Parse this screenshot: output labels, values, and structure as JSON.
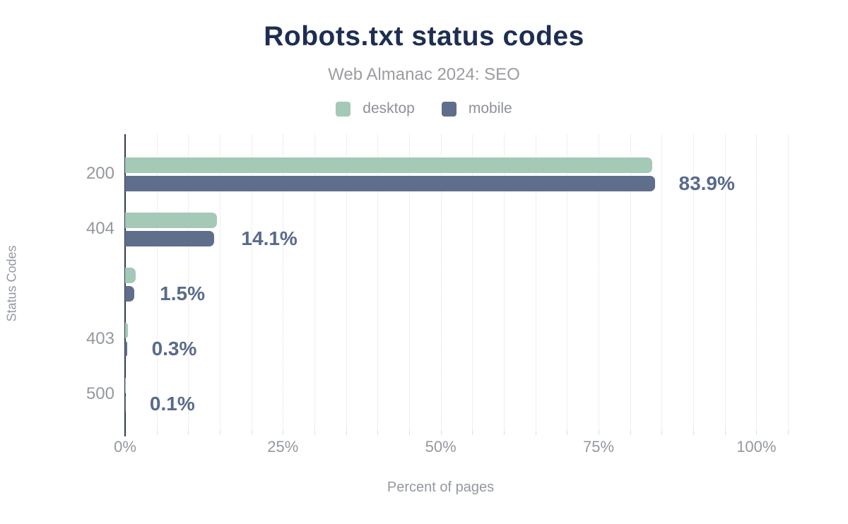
{
  "chart_data": {
    "type": "bar",
    "orientation": "horizontal",
    "title": "Robots.txt status codes",
    "subtitle": "Web Almanac 2024: SEO",
    "xlabel": "Percent of pages",
    "ylabel": "Status Codes",
    "categories": [
      "200",
      "404",
      "",
      "403",
      "500"
    ],
    "series": [
      {
        "name": "desktop",
        "color": "#a4c9b6",
        "values": [
          83.5,
          14.6,
          1.7,
          0.4,
          0.1
        ]
      },
      {
        "name": "mobile",
        "color": "#5f6e8b",
        "values": [
          83.9,
          14.1,
          1.5,
          0.3,
          0.1
        ]
      }
    ],
    "data_labels": [
      "83.9%",
      "14.1%",
      "1.5%",
      "0.3%",
      "0.1%"
    ],
    "x_ticks": [
      {
        "value": 0,
        "label": "0%"
      },
      {
        "value": 25,
        "label": "25%"
      },
      {
        "value": 50,
        "label": "50%"
      },
      {
        "value": 75,
        "label": "75%"
      },
      {
        "value": 100,
        "label": "100%"
      }
    ],
    "xlim": [
      0,
      105
    ],
    "minor_grid_step": 5,
    "major_grid_step": 25,
    "grid": true,
    "legend_position": "top"
  },
  "colors": {
    "title": "#1e2e52",
    "subtitle": "#9c9ca1",
    "legend_text": "#8e9197",
    "axis_text": "#94989f",
    "data_label": "#5a6a8c",
    "axis_line": "#333c4e",
    "background": "#ffffff"
  }
}
